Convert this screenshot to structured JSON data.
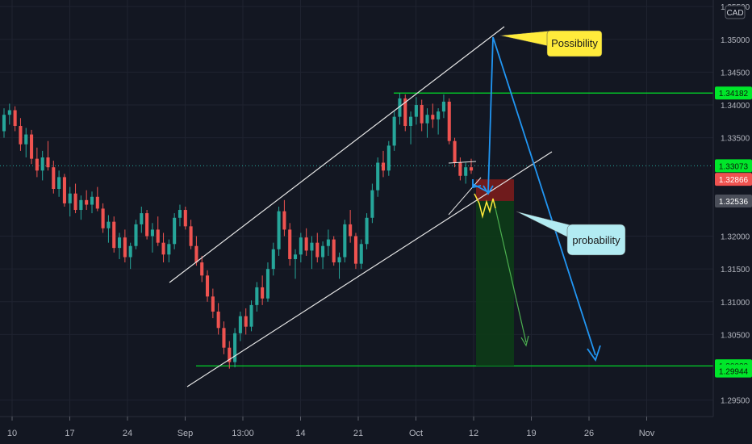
{
  "chart_data": {
    "type": "candlestick",
    "title": "",
    "currency": "CAD",
    "colors": {
      "background": "#131722",
      "up": "#26a69a",
      "down": "#ef5350",
      "grid": "#1f2330",
      "axis_text": "#b2b5be",
      "level_line": "#00e62a",
      "channel": "#e6e6e6",
      "projection": "#2196f3",
      "zigzag": "#ffeb3b",
      "green_arrow": "#4caf50",
      "stop_box": "#7a1c1c",
      "target_box": "#0d3b17"
    },
    "ylim": [
      1.2925,
      1.356
    ],
    "y_ticks": [
      {
        "label": "1.35500",
        "value": 1.355
      },
      {
        "label": "1.35000",
        "value": 1.35
      },
      {
        "label": "1.34500",
        "value": 1.345
      },
      {
        "label": "1.34000",
        "value": 1.34
      },
      {
        "label": "1.33500",
        "value": 1.335
      },
      {
        "label": "1.32000",
        "value": 1.32
      },
      {
        "label": "1.31500",
        "value": 1.315
      },
      {
        "label": "1.31000",
        "value": 1.31
      },
      {
        "label": "1.30500",
        "value": 1.305
      },
      {
        "label": "1.29500",
        "value": 1.295
      }
    ],
    "x_ticks": [
      "10",
      "17",
      "24",
      "Sep",
      "13:00",
      "14",
      "21",
      "Oct",
      "12",
      "19",
      "26",
      "Nov"
    ],
    "levels": [
      {
        "label": "1.34182",
        "value": 1.34182,
        "line": true,
        "style": "green"
      },
      {
        "label": "1.33073",
        "value": 1.33073,
        "line": false,
        "style": "green"
      },
      {
        "label": "1.32866",
        "value": 1.32866,
        "line": false,
        "style": "red"
      },
      {
        "label": "1.32536",
        "value": 1.32536,
        "line": false,
        "style": "gray"
      },
      {
        "label": "1.30023",
        "value": 1.30023,
        "line": true,
        "style": "green"
      },
      {
        "label": "1.29944",
        "value": 1.29944,
        "line": false,
        "style": "green"
      }
    ],
    "candles": [
      [
        1.336,
        1.3395,
        1.335,
        1.3385
      ],
      [
        1.3385,
        1.3402,
        1.337,
        1.3392
      ],
      [
        1.3392,
        1.3398,
        1.336,
        1.3368
      ],
      [
        1.3368,
        1.338,
        1.333,
        1.334
      ],
      [
        1.334,
        1.3365,
        1.332,
        1.3355
      ],
      [
        1.3355,
        1.3362,
        1.331,
        1.3318
      ],
      [
        1.3318,
        1.3335,
        1.329,
        1.33
      ],
      [
        1.33,
        1.333,
        1.3285,
        1.332
      ],
      [
        1.332,
        1.3345,
        1.33,
        1.3305
      ],
      [
        1.3305,
        1.3315,
        1.3265,
        1.3272
      ],
      [
        1.3272,
        1.33,
        1.326,
        1.329
      ],
      [
        1.329,
        1.3295,
        1.3245,
        1.325
      ],
      [
        1.325,
        1.3275,
        1.323,
        1.3265
      ],
      [
        1.3265,
        1.328,
        1.3235,
        1.324
      ],
      [
        1.324,
        1.3262,
        1.3225,
        1.3255
      ],
      [
        1.3255,
        1.327,
        1.324,
        1.3248
      ],
      [
        1.3248,
        1.3268,
        1.3235,
        1.326
      ],
      [
        1.326,
        1.3275,
        1.3238,
        1.3242
      ],
      [
        1.3242,
        1.325,
        1.3205,
        1.3212
      ],
      [
        1.3212,
        1.3232,
        1.319,
        1.3222
      ],
      [
        1.3222,
        1.323,
        1.3175,
        1.3182
      ],
      [
        1.3182,
        1.3205,
        1.3165,
        1.3198
      ],
      [
        1.3198,
        1.321,
        1.316,
        1.3168
      ],
      [
        1.3168,
        1.319,
        1.315,
        1.3185
      ],
      [
        1.3185,
        1.3225,
        1.318,
        1.3218
      ],
      [
        1.3218,
        1.3245,
        1.3205,
        1.3235
      ],
      [
        1.3235,
        1.324,
        1.3195,
        1.32
      ],
      [
        1.32,
        1.322,
        1.3175,
        1.321
      ],
      [
        1.321,
        1.323,
        1.3185,
        1.319
      ],
      [
        1.319,
        1.3205,
        1.316,
        1.3172
      ],
      [
        1.3172,
        1.3195,
        1.316,
        1.3188
      ],
      [
        1.3188,
        1.3235,
        1.318,
        1.3228
      ],
      [
        1.3228,
        1.3248,
        1.3215,
        1.324
      ],
      [
        1.324,
        1.3245,
        1.321,
        1.3215
      ],
      [
        1.3215,
        1.3225,
        1.318,
        1.3185
      ],
      [
        1.3185,
        1.32,
        1.3155,
        1.316
      ],
      [
        1.316,
        1.317,
        1.313,
        1.314
      ],
      [
        1.314,
        1.3148,
        1.31,
        1.3108
      ],
      [
        1.3108,
        1.312,
        1.3075,
        1.3085
      ],
      [
        1.3085,
        1.3098,
        1.305,
        1.306
      ],
      [
        1.306,
        1.307,
        1.302,
        1.303
      ],
      [
        1.303,
        1.304,
        1.2998,
        1.3008
      ],
      [
        1.3008,
        1.306,
        1.3,
        1.3052
      ],
      [
        1.3052,
        1.3085,
        1.304,
        1.3078
      ],
      [
        1.3078,
        1.309,
        1.305,
        1.3062
      ],
      [
        1.3062,
        1.3102,
        1.3055,
        1.3095
      ],
      [
        1.3095,
        1.313,
        1.3085,
        1.3122
      ],
      [
        1.3122,
        1.314,
        1.3095,
        1.3105
      ],
      [
        1.3105,
        1.316,
        1.31,
        1.315
      ],
      [
        1.315,
        1.319,
        1.314,
        1.318
      ],
      [
        1.318,
        1.3245,
        1.317,
        1.3238
      ],
      [
        1.3238,
        1.3255,
        1.32,
        1.321
      ],
      [
        1.321,
        1.322,
        1.3155,
        1.3165
      ],
      [
        1.3165,
        1.318,
        1.3135,
        1.3172
      ],
      [
        1.3172,
        1.3205,
        1.316,
        1.3198
      ],
      [
        1.3198,
        1.3212,
        1.317,
        1.3178
      ],
      [
        1.3178,
        1.32,
        1.315,
        1.319
      ],
      [
        1.319,
        1.3205,
        1.316,
        1.3168
      ],
      [
        1.3168,
        1.3192,
        1.315,
        1.3185
      ],
      [
        1.3185,
        1.321,
        1.317,
        1.3195
      ],
      [
        1.3195,
        1.32,
        1.3155,
        1.316
      ],
      [
        1.316,
        1.3175,
        1.3135,
        1.3168
      ],
      [
        1.3168,
        1.3225,
        1.316,
        1.3218
      ],
      [
        1.3218,
        1.324,
        1.319,
        1.32
      ],
      [
        1.32,
        1.3205,
        1.315,
        1.3158
      ],
      [
        1.3158,
        1.3195,
        1.315,
        1.3188
      ],
      [
        1.3188,
        1.3235,
        1.318,
        1.3228
      ],
      [
        1.3228,
        1.328,
        1.322,
        1.327
      ],
      [
        1.327,
        1.332,
        1.326,
        1.3312
      ],
      [
        1.3312,
        1.333,
        1.329,
        1.33
      ],
      [
        1.33,
        1.3345,
        1.3292,
        1.3338
      ],
      [
        1.3338,
        1.339,
        1.333,
        1.3382
      ],
      [
        1.3382,
        1.3418,
        1.337,
        1.341
      ],
      [
        1.341,
        1.3416,
        1.336,
        1.3368
      ],
      [
        1.3368,
        1.339,
        1.334,
        1.3382
      ],
      [
        1.3382,
        1.3412,
        1.337,
        1.34
      ],
      [
        1.34,
        1.3408,
        1.336,
        1.3372
      ],
      [
        1.3372,
        1.3395,
        1.335,
        1.3385
      ],
      [
        1.3385,
        1.3402,
        1.3365,
        1.3378
      ],
      [
        1.3378,
        1.3395,
        1.3355,
        1.339
      ],
      [
        1.339,
        1.3416,
        1.338,
        1.3405
      ],
      [
        1.3405,
        1.341,
        1.334,
        1.3345
      ],
      [
        1.3345,
        1.335,
        1.3305,
        1.3312
      ],
      [
        1.3312,
        1.332,
        1.3285,
        1.3292
      ],
      [
        1.3292,
        1.3312,
        1.328,
        1.3305
      ],
      [
        1.3305,
        1.3318,
        1.3295,
        1.33
      ]
    ],
    "annotations": [
      {
        "text": "Possibility"
      },
      {
        "text": "probability"
      }
    ]
  }
}
